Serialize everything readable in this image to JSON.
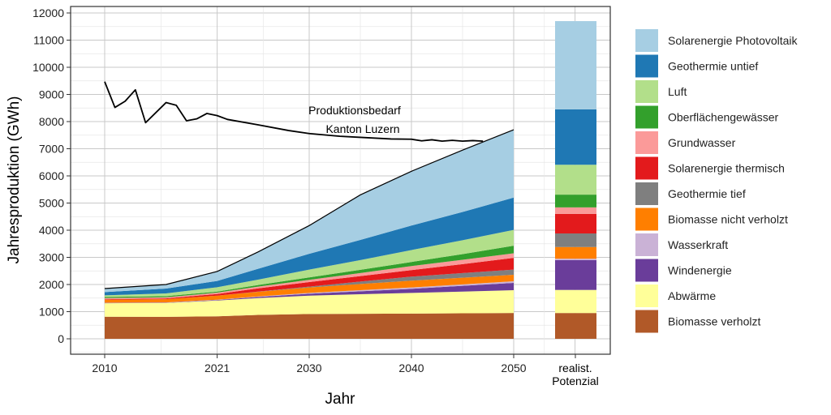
{
  "chart_data": {
    "type": "area",
    "stacked": true,
    "xlabel": "Jahr",
    "ylabel": "Jahresproduktion (GWh)",
    "ylim": [
      0,
      12000
    ],
    "y_ticks": [
      0,
      1000,
      2000,
      3000,
      4000,
      5000,
      6000,
      7000,
      8000,
      9000,
      10000,
      11000,
      12000
    ],
    "x_ticks": [
      2010,
      2021,
      2030,
      2040,
      2050
    ],
    "x_tick_labels": [
      "2010",
      "2021",
      "2030",
      "2040",
      "2050"
    ],
    "potential_label": [
      "realist.",
      "Potenzial"
    ],
    "grid": true,
    "legend_position": "right",
    "years": [
      2010,
      2016,
      2021,
      2025,
      2030,
      2035,
      2040,
      2045,
      2050
    ],
    "series": [
      {
        "name": "Biomasse verholzt",
        "color": "#b15928",
        "values": [
          815,
          810,
          830,
          880,
          915,
          920,
          930,
          940,
          950
        ],
        "potential": 950
      },
      {
        "name": "Abwärme",
        "color": "#ffff99",
        "values": [
          495,
          510,
          580,
          620,
          675,
          720,
          760,
          800,
          840
        ],
        "potential": 850
      },
      {
        "name": "Windenergie",
        "color": "#6a3d9a",
        "values": [
          10,
          10,
          20,
          40,
          70,
          110,
          150,
          210,
          270
        ],
        "potential": 1100
      },
      {
        "name": "Wasserkraft",
        "color": "#cab2d6",
        "values": [
          10,
          10,
          10,
          20,
          30,
          40,
          50,
          55,
          60
        ],
        "potential": 50
      },
      {
        "name": "Biomasse nicht verholzt",
        "color": "#ff7f00",
        "values": [
          110,
          120,
          150,
          170,
          200,
          230,
          250,
          245,
          240
        ],
        "potential": 430
      },
      {
        "name": "Geothermie tief",
        "color": "#7f7f7f",
        "values": [
          0,
          0,
          0,
          10,
          30,
          90,
          150,
          170,
          190
        ],
        "potential": 500
      },
      {
        "name": "Solarenergie thermisch",
        "color": "#e31a1c",
        "values": [
          20,
          30,
          60,
          120,
          170,
          200,
          240,
          330,
          430
        ],
        "potential": 720
      },
      {
        "name": "Grundwasser",
        "color": "#fb9a99",
        "values": [
          40,
          40,
          50,
          60,
          80,
          110,
          150,
          160,
          170
        ],
        "potential": 240
      },
      {
        "name": "Oberflächengewässer",
        "color": "#33a02c",
        "values": [
          40,
          40,
          40,
          60,
          90,
          120,
          150,
          210,
          280
        ],
        "potential": 470
      },
      {
        "name": "Luft",
        "color": "#b2df8a",
        "values": [
          60,
          100,
          160,
          200,
          290,
          360,
          440,
          510,
          580
        ],
        "potential": 1100
      },
      {
        "name": "Geothermie untief",
        "color": "#1f78b4",
        "values": [
          120,
          180,
          230,
          400,
          580,
          740,
          900,
          1040,
          1190
        ],
        "potential": 2040
      },
      {
        "name": "Solarenergie Photovoltaik",
        "color": "#a6cee3",
        "values": [
          130,
          150,
          350,
          620,
          1040,
          1660,
          2000,
          2280,
          2500
        ],
        "potential": 3250
      }
    ],
    "demand_line": {
      "label_line1": "Produktionsbedarf",
      "label_line2": "Kanton Luzern",
      "years": [
        2010,
        2011,
        2012,
        2013,
        2014,
        2016,
        2017,
        2018,
        2019,
        2020,
        2021,
        2022,
        2025,
        2028,
        2030,
        2033,
        2035,
        2038,
        2040,
        2041,
        2042,
        2043,
        2044,
        2045,
        2046,
        2047
      ],
      "values": [
        9470,
        8520,
        8750,
        9170,
        7960,
        8700,
        8600,
        8030,
        8100,
        8300,
        8220,
        8080,
        7880,
        7670,
        7560,
        7460,
        7420,
        7360,
        7350,
        7290,
        7330,
        7280,
        7310,
        7280,
        7300,
        7280
      ]
    }
  }
}
